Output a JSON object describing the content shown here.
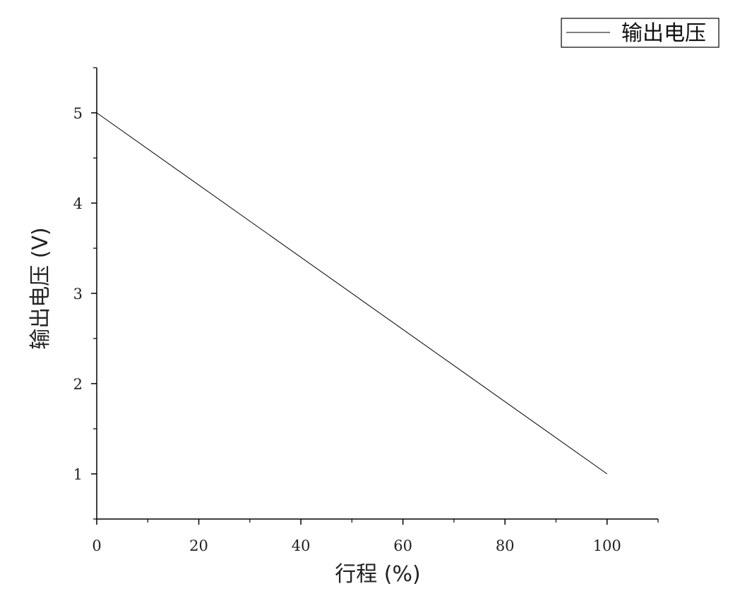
{
  "chart_data": {
    "type": "line",
    "title": "",
    "xlabel": "行程 (%)",
    "ylabel": "输出电压 (V)",
    "xlim": [
      0,
      110
    ],
    "ylim": [
      0.5,
      5.5
    ],
    "x_ticks": [
      0,
      20,
      40,
      60,
      80,
      100
    ],
    "x_tick_labels": [
      "0",
      "20",
      "40",
      "60",
      "80",
      "100"
    ],
    "y_ticks": [
      1,
      2,
      3,
      4,
      5
    ],
    "y_tick_labels": [
      "1",
      "2",
      "3",
      "4",
      "5"
    ],
    "grid": false,
    "legend_position": "top-right",
    "series": [
      {
        "name": "输出电压",
        "color": "#000000",
        "x": [
          0,
          100
        ],
        "y": [
          5,
          1
        ]
      }
    ]
  }
}
